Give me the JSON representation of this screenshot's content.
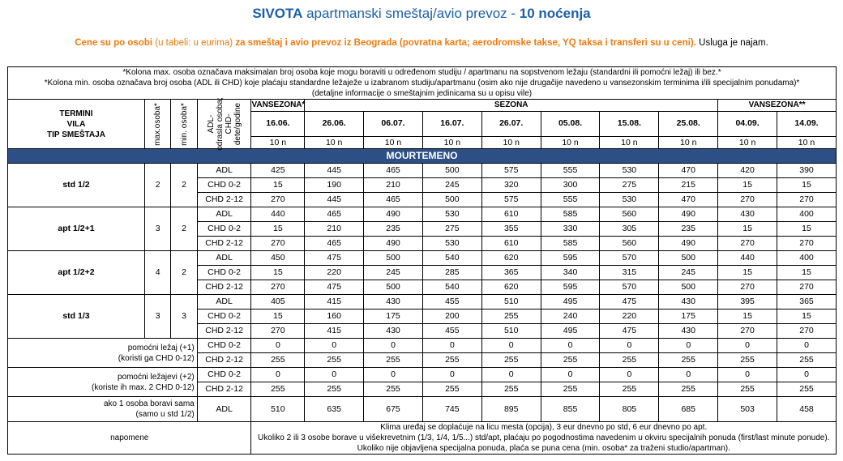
{
  "title": {
    "main": "SIVOTA",
    "middle": " apartmanski smeštaj/avio prevoz - ",
    "nights": "10 noćenja"
  },
  "subtitle": {
    "p1": "Cene su po osobi",
    "p2": " (u tabeli: u eurima) ",
    "p3": "za smeštaj i avio prevoz iz Beograda (povratna karta; aerodromske takse, YQ taksa i transferi su u ceni).",
    "p4": " Usluga je najam."
  },
  "notes": [
    "*Kolona max. osoba označava maksimalan broj osoba koje mogu boraviti u određenom studiju / apartmanu na sopstvenom ležaju (standardni ili pomoćni ležaj) ili bez.*",
    "*Kolona min. osoba označava broj osoba (ADL ili CHD) koje plaćaju standardne ležaježe u izabranom studiju/apartmanu (osim ako nije drugačije navedeno u vansezonskim terminima i/ili specijalnim ponudama)*",
    "(detaljne informacije o smeštajnim jedinicama su u opisu vile)"
  ],
  "header": {
    "termini": "TERMINI",
    "vila": "VILA",
    "tip": "TIP SMEŠTAJA",
    "max": "max.osoba*",
    "min": "min. osoba*",
    "adl1": "ADL-",
    "adl2": "odrasla osoba;",
    "adl3": "CHD-",
    "adl4": "dete/godine",
    "seasons": [
      "VANSEZONA*",
      "SEZONA",
      "VANSEZONA**"
    ],
    "dates": [
      "16.06.",
      "26.06.",
      "06.07.",
      "16.07.",
      "26.07.",
      "05.08.",
      "15.08.",
      "25.08.",
      "04.09.",
      "14.09."
    ],
    "nights": [
      "10 n",
      "10 n",
      "10 n",
      "10 n",
      "10 n",
      "10 n",
      "10 n",
      "10 n",
      "10 n",
      "10 n"
    ]
  },
  "section": "MOURTEMENO",
  "accommodations": [
    {
      "name": "std 1/2",
      "max": "2",
      "min": "2",
      "rows": [
        {
          "type": "ADL",
          "prices": [
            "425",
            "445",
            "465",
            "500",
            "575",
            "555",
            "530",
            "470",
            "420",
            "390"
          ]
        },
        {
          "type": "CHD 0-2",
          "prices": [
            "15",
            "190",
            "210",
            "245",
            "320",
            "300",
            "275",
            "215",
            "15",
            "15"
          ]
        },
        {
          "type": "CHD 2-12",
          "prices": [
            "270",
            "445",
            "465",
            "500",
            "575",
            "555",
            "530",
            "470",
            "270",
            "270"
          ]
        }
      ]
    },
    {
      "name": "apt 1/2+1",
      "max": "3",
      "min": "2",
      "rows": [
        {
          "type": "ADL",
          "prices": [
            "440",
            "465",
            "490",
            "530",
            "610",
            "585",
            "560",
            "490",
            "430",
            "400"
          ]
        },
        {
          "type": "CHD 0-2",
          "prices": [
            "15",
            "210",
            "235",
            "275",
            "355",
            "330",
            "305",
            "235",
            "15",
            "15"
          ]
        },
        {
          "type": "CHD 2-12",
          "prices": [
            "270",
            "465",
            "490",
            "530",
            "610",
            "585",
            "560",
            "490",
            "270",
            "270"
          ]
        }
      ]
    },
    {
      "name": "apt 1/2+2",
      "max": "4",
      "min": "2",
      "rows": [
        {
          "type": "ADL",
          "prices": [
            "450",
            "475",
            "500",
            "540",
            "620",
            "595",
            "570",
            "500",
            "440",
            "400"
          ]
        },
        {
          "type": "CHD 0-2",
          "prices": [
            "15",
            "220",
            "245",
            "285",
            "365",
            "340",
            "315",
            "245",
            "15",
            "15"
          ]
        },
        {
          "type": "CHD 2-12",
          "prices": [
            "270",
            "475",
            "500",
            "540",
            "620",
            "595",
            "570",
            "500",
            "270",
            "270"
          ]
        }
      ]
    },
    {
      "name": "std 1/3",
      "max": "3",
      "min": "3",
      "rows": [
        {
          "type": "ADL",
          "prices": [
            "405",
            "415",
            "430",
            "455",
            "510",
            "495",
            "475",
            "430",
            "395",
            "365"
          ]
        },
        {
          "type": "CHD 0-2",
          "prices": [
            "15",
            "160",
            "175",
            "200",
            "255",
            "240",
            "220",
            "175",
            "15",
            "15"
          ]
        },
        {
          "type": "CHD 2-12",
          "prices": [
            "270",
            "415",
            "430",
            "455",
            "510",
            "495",
            "475",
            "430",
            "270",
            "270"
          ]
        }
      ]
    }
  ],
  "extras": [
    {
      "label1": "pomoćni ležaj (+1)",
      "label2": "(koristi ga CHD 0-12)",
      "rows": [
        {
          "type": "CHD 0-2",
          "prices": [
            "0",
            "0",
            "0",
            "0",
            "0",
            "0",
            "0",
            "0",
            "0",
            "0"
          ]
        },
        {
          "type": "CHD 2-12",
          "prices": [
            "255",
            "255",
            "255",
            "255",
            "255",
            "255",
            "255",
            "255",
            "255",
            "255"
          ]
        }
      ]
    },
    {
      "label1": "pomoćni ležajevi (+2)",
      "label2": "(koriste ih max. 2 CHD 0-12)",
      "rows": [
        {
          "type": "CHD 0-2",
          "prices": [
            "0",
            "0",
            "0",
            "0",
            "0",
            "0",
            "0",
            "0",
            "0",
            "0"
          ]
        },
        {
          "type": "CHD 2-12",
          "prices": [
            "255",
            "255",
            "255",
            "255",
            "255",
            "255",
            "255",
            "255",
            "255",
            "255"
          ]
        }
      ]
    }
  ],
  "single": {
    "label1": "ako 1 osoba boravi sama",
    "label2": "(samo u std 1/2)",
    "type": "ADL",
    "prices": [
      "510",
      "635",
      "675",
      "745",
      "895",
      "855",
      "805",
      "685",
      "503",
      "458"
    ]
  },
  "napomene": {
    "label": "napomene",
    "lines": [
      "Klima uređaj se doplaćuje na licu mesta (opcija), 3 eur dnevno po std, 6 eur dnevno po apt.",
      "Ukoliko 2 ili 3 osobe borave u višekrevetnim (1/3, 1/4, 1/5...) std/apt, plaćaju po pogodnostima navedenim u okviru specijalnih ponuda (first/last minute ponude).",
      "Ukoliko nije objavljena specijalna ponuda, plaća se puna cena (min. osoba* za traženi studio/apartman)."
    ]
  }
}
